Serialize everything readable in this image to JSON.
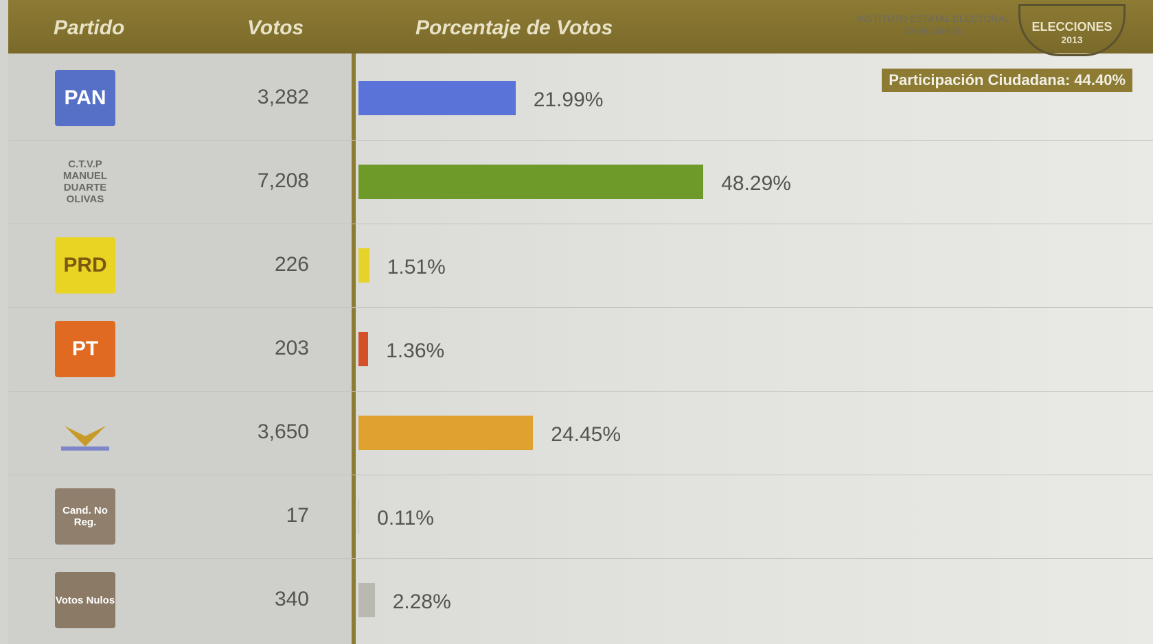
{
  "header": {
    "columns": [
      "Partido",
      "Votos",
      "Porcentaje de Votos"
    ],
    "institute": "INSTITUTO ESTATAL ELECTORAL CHIHUAHUA",
    "badge": "ELECCIONES",
    "year": "2013",
    "participation": "Participación Ciudadana: 44.40%"
  },
  "chart_data": {
    "type": "bar",
    "orientation": "horizontal",
    "categories": [
      "PAN",
      "C.T.V.P MANUEL DUARTE OLIVAS",
      "PRD",
      "PT",
      null,
      "Cand. No Reg.",
      "Votos Nulos"
    ],
    "votes": [
      "3,282",
      "7,208",
      "226",
      "203",
      "3,650",
      "17",
      "340"
    ],
    "values": [
      21.99,
      48.29,
      1.51,
      1.36,
      24.45,
      0.11,
      2.28
    ],
    "value_labels": [
      "21.99%",
      "48.29%",
      "1.51%",
      "1.36%",
      "24.45%",
      "0.11%",
      "2.28%"
    ],
    "colors": [
      "#5a73d8",
      "#6e9a2a",
      "#e6d32a",
      "#d4502a",
      "#e0a22e",
      "#bdbdb8",
      "#b9b9b2"
    ],
    "logo_colors": [
      "#5670c8",
      "#cfd0cb",
      "#e9d424",
      "#e06a22",
      "#cfd0cb",
      "#8f7f6c",
      "#8a7a66"
    ],
    "xlim": [
      0,
      100
    ]
  }
}
